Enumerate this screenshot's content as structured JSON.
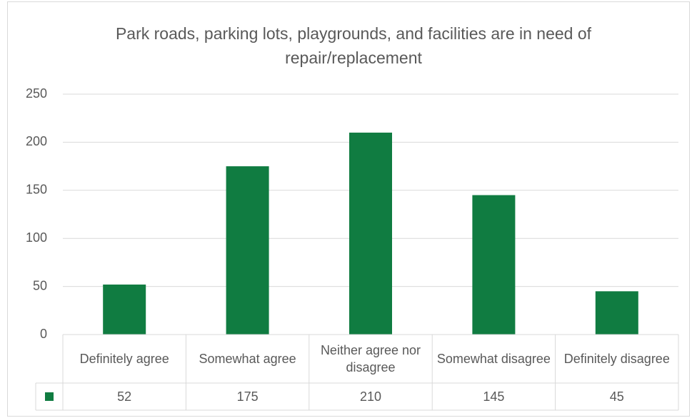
{
  "chart_data": {
    "type": "bar",
    "title": "Park roads, parking lots, playgrounds, and facilities are in need of repair/replacement",
    "categories": [
      "Definitely agree",
      "Somewhat agree",
      "Neither agree nor disagree",
      "Somewhat disagree",
      "Definitely disagree"
    ],
    "values": [
      52,
      175,
      210,
      145,
      45
    ],
    "color": "#107c41",
    "ylim": [
      0,
      250
    ],
    "yticks": [
      0,
      50,
      100,
      150,
      200,
      250
    ],
    "grid": true,
    "data_table": true
  }
}
